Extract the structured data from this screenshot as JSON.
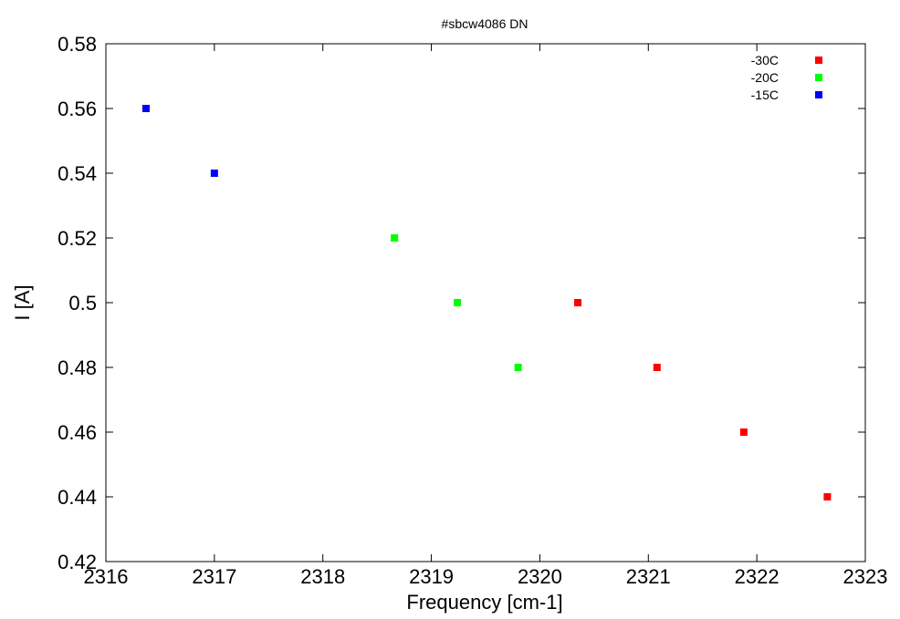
{
  "chart_data": {
    "type": "scatter",
    "title": "#sbcw4086 DN",
    "xlabel": "Frequency [cm-1]",
    "ylabel": "I [A]",
    "xlim": [
      2316,
      2323
    ],
    "ylim": [
      0.42,
      0.58
    ],
    "x_ticks": [
      "2316",
      "2317",
      "2318",
      "2319",
      "2320",
      "2321",
      "2322",
      "2323"
    ],
    "y_ticks": [
      "0.42",
      "0.44",
      "0.46",
      "0.48",
      "0.5",
      "0.52",
      "0.54",
      "0.56",
      "0.58"
    ],
    "legend_position": "top-right",
    "grid": false,
    "series": [
      {
        "name": "-30C",
        "color": "#ff0000",
        "points": [
          {
            "x": 2320.35,
            "y": 0.5
          },
          {
            "x": 2321.08,
            "y": 0.48
          },
          {
            "x": 2321.88,
            "y": 0.46
          },
          {
            "x": 2322.65,
            "y": 0.44
          }
        ]
      },
      {
        "name": "-20C",
        "color": "#00ff00",
        "points": [
          {
            "x": 2318.66,
            "y": 0.52
          },
          {
            "x": 2319.24,
            "y": 0.5
          },
          {
            "x": 2319.8,
            "y": 0.48
          }
        ]
      },
      {
        "name": "-15C",
        "color": "#0000ff",
        "points": [
          {
            "x": 2316.37,
            "y": 0.56
          },
          {
            "x": 2317.0,
            "y": 0.54
          }
        ]
      }
    ]
  }
}
